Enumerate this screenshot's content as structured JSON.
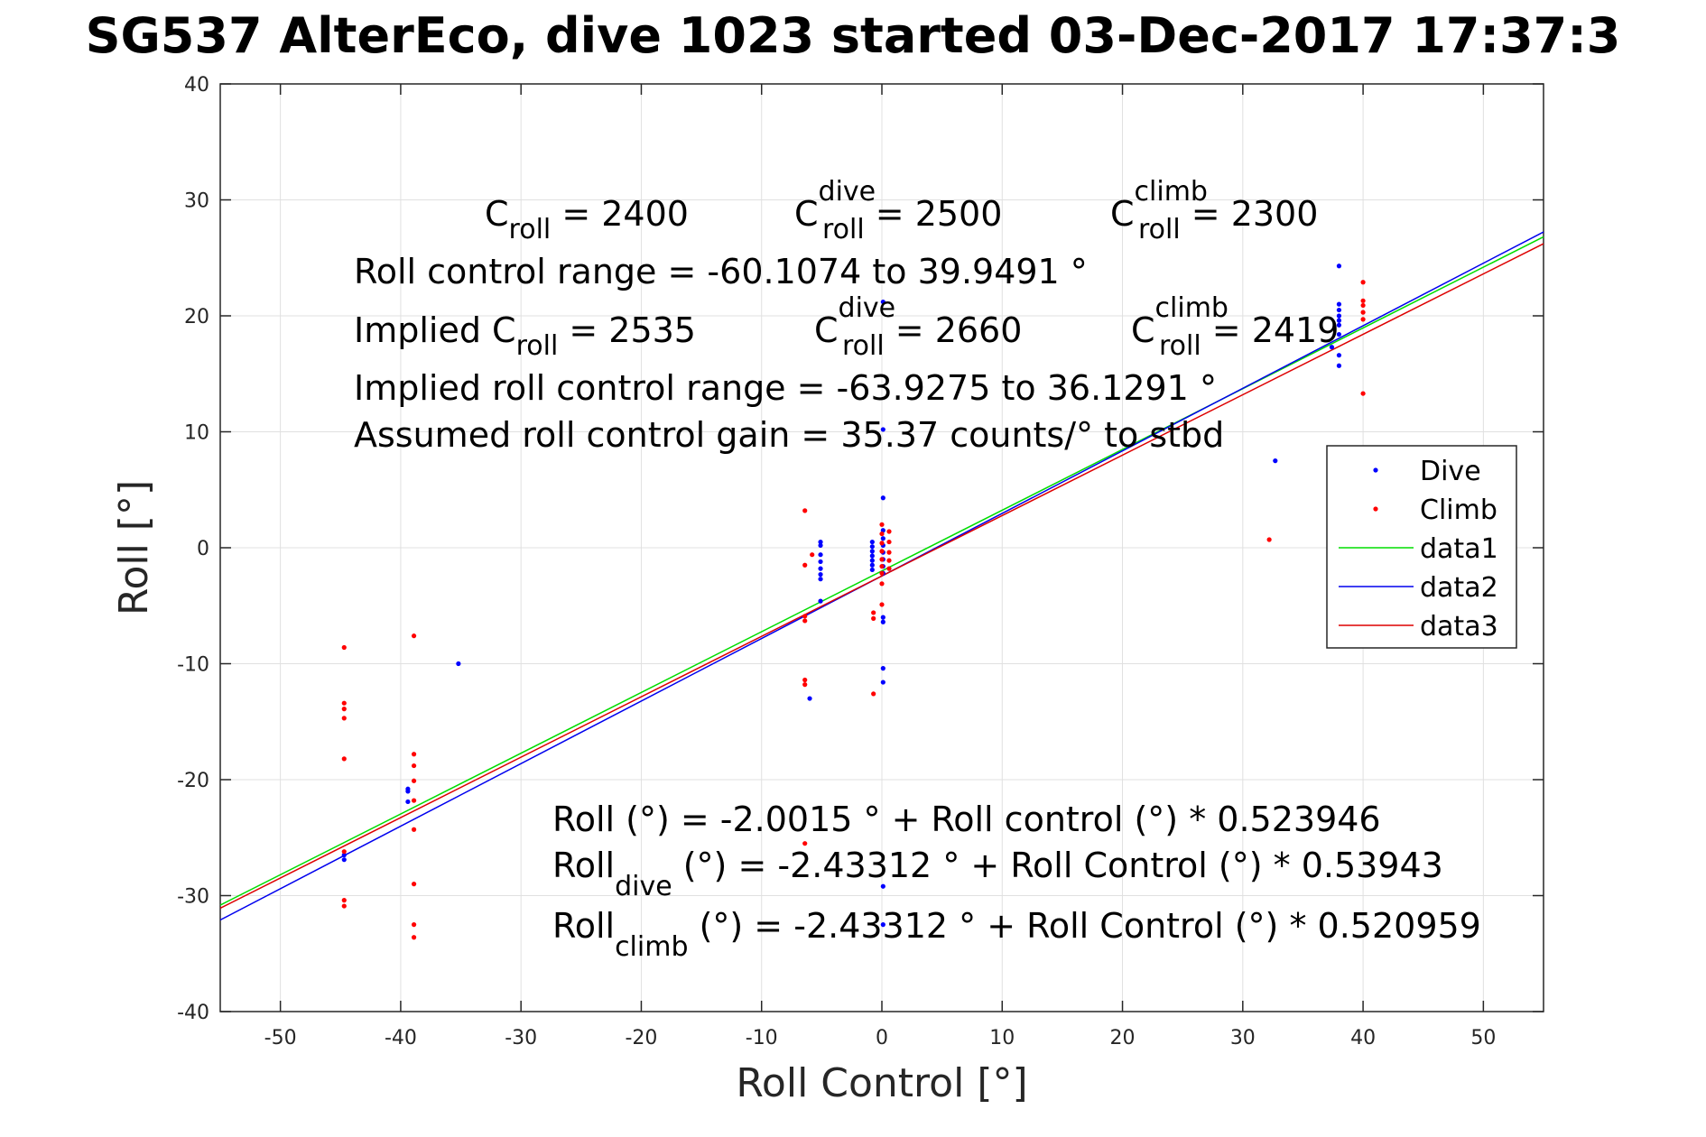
{
  "colors": {
    "dive": "#0000ff",
    "climb": "#ff0000",
    "data1": "#00dd00",
    "data2": "#0000ee",
    "data3": "#dd0000",
    "grid": "#e0e0e0",
    "axis": "#262626"
  },
  "chart_data": {
    "type": "scatter",
    "title": "SG537 AlterEco, dive 1023 started 03-Dec-2017 17:37:3",
    "xlabel": "Roll Control [°]",
    "ylabel": "Roll [°]",
    "xlim": [
      -55,
      55
    ],
    "ylim": [
      -40,
      40
    ],
    "grid": true,
    "legend_position": "right",
    "xticks": [
      -50,
      -40,
      -30,
      -20,
      -10,
      0,
      10,
      20,
      30,
      40,
      50
    ],
    "yticks": [
      -40,
      -30,
      -20,
      -10,
      0,
      10,
      20,
      30,
      40
    ],
    "series": [
      {
        "name": "Dive",
        "kind": "points",
        "color": "#0000ff",
        "points": [
          [
            -44.7,
            -26.5
          ],
          [
            -44.7,
            -26.9
          ],
          [
            -39.4,
            -20.8
          ],
          [
            -39.4,
            -21.0
          ],
          [
            -39.4,
            -21.9
          ],
          [
            -35.2,
            -10.0
          ],
          [
            -6.0,
            -13.0
          ],
          [
            -5.1,
            0.5
          ],
          [
            -5.1,
            0.2
          ],
          [
            -5.1,
            -0.6
          ],
          [
            -5.1,
            -1.2
          ],
          [
            -5.1,
            -1.8
          ],
          [
            -5.1,
            -2.3
          ],
          [
            -5.1,
            -2.7
          ],
          [
            -5.1,
            -4.6
          ],
          [
            -0.8,
            0.5
          ],
          [
            -0.8,
            0.1
          ],
          [
            -0.8,
            -0.3
          ],
          [
            -0.8,
            -0.7
          ],
          [
            -0.8,
            -1.1
          ],
          [
            -0.8,
            -1.5
          ],
          [
            -0.8,
            -1.9
          ],
          [
            0.1,
            21.2
          ],
          [
            0.1,
            10.2
          ],
          [
            0.1,
            4.3
          ],
          [
            0.1,
            1.5
          ],
          [
            0.1,
            0.8
          ],
          [
            0.1,
            0.2
          ],
          [
            0.1,
            -0.4
          ],
          [
            0.1,
            -1.0
          ],
          [
            0.1,
            -1.6
          ],
          [
            0.1,
            -2.2
          ],
          [
            0.1,
            -6.0
          ],
          [
            0.1,
            -6.4
          ],
          [
            0.1,
            -10.4
          ],
          [
            0.1,
            -11.6
          ],
          [
            0.1,
            -29.2
          ],
          [
            0.1,
            -32.5
          ],
          [
            32.7,
            7.5
          ],
          [
            37.4,
            17.3
          ],
          [
            38.0,
            24.3
          ],
          [
            38.0,
            21.0
          ],
          [
            38.0,
            20.5
          ],
          [
            38.0,
            20.0
          ],
          [
            38.0,
            19.6
          ],
          [
            38.0,
            19.2
          ],
          [
            38.0,
            18.4
          ],
          [
            38.0,
            16.6
          ],
          [
            38.0,
            15.7
          ]
        ]
      },
      {
        "name": "Climb",
        "kind": "points",
        "color": "#ff0000",
        "points": [
          [
            -44.7,
            -8.6
          ],
          [
            -44.7,
            -13.4
          ],
          [
            -44.7,
            -13.9
          ],
          [
            -44.7,
            -14.7
          ],
          [
            -44.7,
            -18.2
          ],
          [
            -44.7,
            -26.2
          ],
          [
            -44.7,
            -30.4
          ],
          [
            -44.7,
            -30.9
          ],
          [
            -38.9,
            -7.6
          ],
          [
            -38.9,
            -17.8
          ],
          [
            -38.9,
            -18.8
          ],
          [
            -38.9,
            -20.1
          ],
          [
            -38.9,
            -21.8
          ],
          [
            -38.9,
            -24.3
          ],
          [
            -38.9,
            -29.0
          ],
          [
            -38.9,
            -32.5
          ],
          [
            -38.9,
            -33.6
          ],
          [
            -6.4,
            3.2
          ],
          [
            -6.4,
            -1.5
          ],
          [
            -6.4,
            -5.9
          ],
          [
            -6.4,
            -6.3
          ],
          [
            -6.4,
            -11.4
          ],
          [
            -6.4,
            -11.8
          ],
          [
            -6.4,
            -25.5
          ],
          [
            -5.8,
            -0.6
          ],
          [
            -0.7,
            -5.6
          ],
          [
            -0.7,
            -6.1
          ],
          [
            -0.7,
            -12.6
          ],
          [
            0.0,
            2.0
          ],
          [
            0.0,
            1.2
          ],
          [
            0.0,
            0.4
          ],
          [
            0.0,
            -0.3
          ],
          [
            0.0,
            -1.0
          ],
          [
            0.0,
            -1.6
          ],
          [
            0.0,
            -2.2
          ],
          [
            0.0,
            -3.1
          ],
          [
            0.0,
            -4.9
          ],
          [
            0.6,
            1.4
          ],
          [
            0.6,
            0.5
          ],
          [
            0.6,
            -0.4
          ],
          [
            0.6,
            -1.1
          ],
          [
            0.6,
            -1.8
          ],
          [
            32.2,
            0.7
          ],
          [
            40.0,
            22.9
          ],
          [
            40.0,
            21.3
          ],
          [
            40.0,
            20.9
          ],
          [
            40.0,
            20.3
          ],
          [
            40.0,
            19.7
          ],
          [
            40.0,
            13.3
          ]
        ]
      },
      {
        "name": "data1",
        "kind": "line",
        "color": "#00dd00",
        "x": [
          -55,
          55
        ],
        "intercept": -2.0015,
        "slope": 0.523946
      },
      {
        "name": "data2",
        "kind": "line",
        "color": "#0000ee",
        "x": [
          -55,
          55
        ],
        "intercept": -2.43312,
        "slope": 0.53943
      },
      {
        "name": "data3",
        "kind": "line",
        "color": "#dd0000",
        "x": [
          -55,
          55
        ],
        "intercept": -2.43312,
        "slope": 0.520959
      }
    ],
    "annotations": {
      "c_roll_label": "C",
      "c_roll_sub": "roll",
      "c_roll_value": " = 2400",
      "c_dive_label": "C",
      "c_dive_sup": "dive",
      "c_dive_sub": "roll",
      "c_dive_value": " = 2500",
      "c_climb_label": "C",
      "c_climb_sup": "climb",
      "c_climb_sub": "roll",
      "c_climb_value": " = 2300",
      "range": "Roll control range = -60.1074 to 39.9491 °",
      "implied_label": "Implied C",
      "implied_sub": "roll",
      "implied_value": " = 2535",
      "implied_dive_label": "C",
      "implied_dive_sup": "dive",
      "implied_dive_sub": "roll",
      "implied_dive_value": " = 2660",
      "implied_climb_label": "C",
      "implied_climb_sup": "climb",
      "implied_climb_sub": "roll",
      "implied_climb_value": " = 2419",
      "implied_range": "Implied roll control range = -63.9275 to 36.1291 °",
      "gain": "Assumed roll control gain = 35.37 counts/° to stbd",
      "fit": "Roll (°) = -2.0015 ° + Roll control (°) * 0.523946",
      "fit_dive_label": "Roll",
      "fit_dive_sub": "dive",
      "fit_dive_rest": " (°) = -2.43312 ° + Roll Control (°) * 0.53943",
      "fit_climb_label": "Roll",
      "fit_climb_sub": "climb",
      "fit_climb_rest": " (°) = -2.43312 ° + Roll Control (°) * 0.520959"
    }
  }
}
